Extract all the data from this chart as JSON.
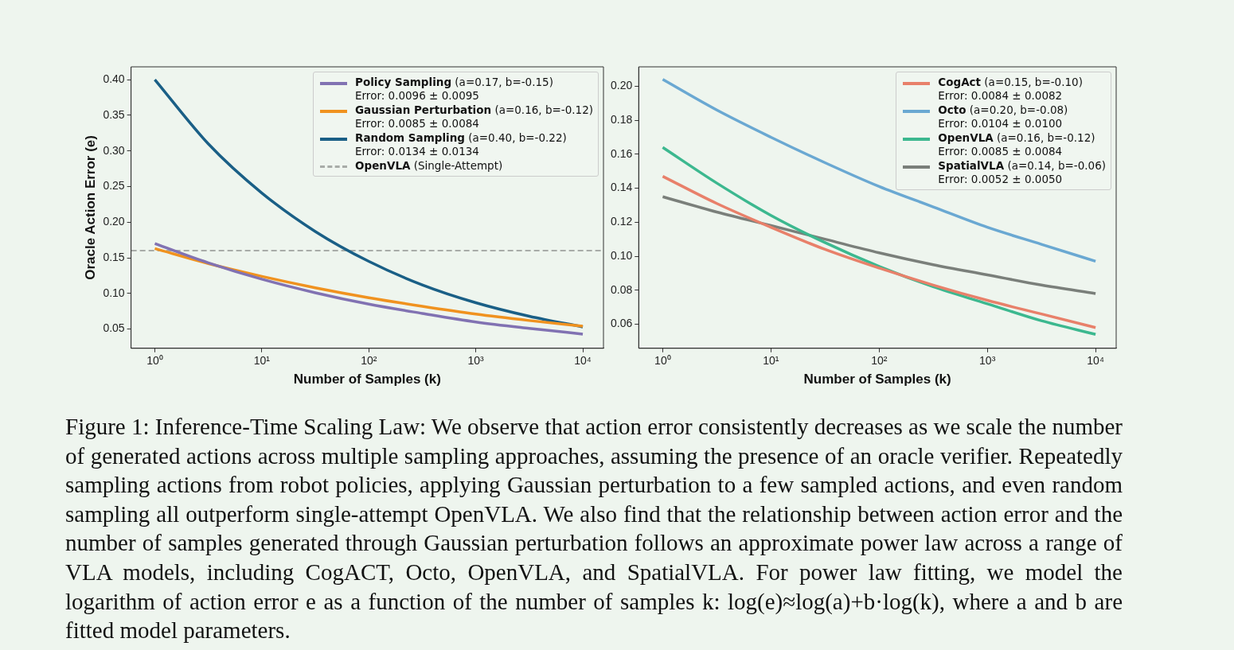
{
  "chart_data": [
    {
      "type": "line",
      "xlabel": "Number of Samples (k)",
      "ylabel": "Oracle Action Error (e)",
      "log": "x",
      "legend": "top right",
      "x": [
        1,
        3.16,
        10,
        31.6,
        100,
        316,
        1000,
        3160,
        10000
      ],
      "xlim": [
        0.62,
        15600
      ],
      "xticks": [
        {
          "value": 1,
          "label": "10⁰"
        },
        {
          "value": 10,
          "label": "10¹"
        },
        {
          "value": 100,
          "label": "10²"
        },
        {
          "value": 1000,
          "label": "10³"
        },
        {
          "value": 10000,
          "label": "10⁴"
        }
      ],
      "ylim": [
        0.023,
        0.418
      ],
      "yticks": [
        {
          "value": 0.05,
          "label": "0.05"
        },
        {
          "value": 0.1,
          "label": "0.10"
        },
        {
          "value": 0.15,
          "label": "0.15"
        },
        {
          "value": 0.2,
          "label": "0.20"
        },
        {
          "value": 0.25,
          "label": "0.25"
        },
        {
          "value": 0.3,
          "label": "0.30"
        },
        {
          "value": 0.35,
          "label": "0.35"
        },
        {
          "value": 0.4,
          "label": "0.40"
        }
      ],
      "series": [
        {
          "name": "Policy Sampling (a=0.17, b=-0.15)\nError: 0.0096 ± 0.0095",
          "color": "#8172b2",
          "values": [
            0.17,
            0.143,
            0.12,
            0.101,
            0.085,
            0.072,
            0.06,
            0.051,
            0.043
          ]
        },
        {
          "name": "Gaussian Perturbation (a=0.16, b=-0.12)\nError: 0.0085 ± 0.0084",
          "color": "#f0921f",
          "values": [
            0.163,
            0.142,
            0.124,
            0.108,
            0.094,
            0.082,
            0.071,
            0.062,
            0.054
          ]
        },
        {
          "name": "Random Sampling (a=0.40, b=-0.22)\nError: 0.0134 ± 0.0134",
          "color": "#1a5f86",
          "values": [
            0.4,
            0.31,
            0.241,
            0.187,
            0.145,
            0.112,
            0.087,
            0.068,
            0.053
          ]
        }
      ],
      "ref_lines": [
        {
          "axis": "y",
          "value": 0.16,
          "label": "OpenVLA (Single-Attempt)",
          "color": "#a8aca8",
          "line_style": "dashed"
        }
      ],
      "annotations": [
        "Figure 1: Inference-Time Scaling Law: We observe that action error consistently decreases as we scale the number of generated actions across multiple sampling approaches, assuming the presence of an oracle verifier. Repeatedly sampling actions from robot policies, applying Gaussian perturbation to a few sampled actions, and even random sampling all outperform single-attempt OpenVLA. We also find that the relationship between action error and the number of samples generated through Gaussian perturbation follows an approximate power law across a range of VLA models, including CogACT, Octo, OpenVLA, and SpatialVLA. For power law fitting, we model the logarithm of action error e as a function of the number of samples k: log(e)≈log(a)+b·log(k), where a and b are fitted model parameters."
      ]
    },
    {
      "type": "line",
      "xlabel": "Number of Samples (k)",
      "log": "x",
      "legend": "top right",
      "x": [
        1,
        3.16,
        10,
        31.6,
        100,
        316,
        1000,
        3160,
        10000
      ],
      "xlim": [
        0.63,
        15500
      ],
      "xticks": [
        {
          "value": 1,
          "label": "10⁰"
        },
        {
          "value": 10,
          "label": "10¹"
        },
        {
          "value": 100,
          "label": "10²"
        },
        {
          "value": 1000,
          "label": "10³"
        },
        {
          "value": 10000,
          "label": "10⁴"
        }
      ],
      "ylim": [
        0.0458,
        0.2114
      ],
      "yticks": [
        {
          "value": 0.06,
          "label": "0.06"
        },
        {
          "value": 0.08,
          "label": "0.08"
        },
        {
          "value": 0.1,
          "label": "0.10"
        },
        {
          "value": 0.12,
          "label": "0.12"
        },
        {
          "value": 0.14,
          "label": "0.14"
        },
        {
          "value": 0.16,
          "label": "0.16"
        },
        {
          "value": 0.18,
          "label": "0.18"
        },
        {
          "value": 0.2,
          "label": "0.20"
        }
      ],
      "series": [
        {
          "name": "CogAct (a=0.15, b=-0.10)\nError: 0.0084 ± 0.0082",
          "color": "#e8806a",
          "values": [
            0.147,
            0.131,
            0.117,
            0.104,
            0.093,
            0.083,
            0.074,
            0.066,
            0.058
          ]
        },
        {
          "name": "Octo (a=0.20, b=-0.08)\nError: 0.0104 ± 0.0100",
          "color": "#6aa8d2",
          "values": [
            0.204,
            0.186,
            0.17,
            0.155,
            0.141,
            0.129,
            0.117,
            0.107,
            0.097
          ]
        },
        {
          "name": "OpenVLA (a=0.16, b=-0.12)\nError: 0.0085 ± 0.0084",
          "color": "#3cb88f",
          "values": [
            0.164,
            0.143,
            0.124,
            0.108,
            0.094,
            0.082,
            0.072,
            0.062,
            0.054
          ]
        },
        {
          "name": "SpatialVLA (a=0.14, b=-0.06)\nError: 0.0052 ± 0.0050",
          "color": "#7a7f7a",
          "values": [
            0.135,
            0.126,
            0.118,
            0.11,
            0.102,
            0.095,
            0.089,
            0.083,
            0.078
          ]
        }
      ]
    }
  ]
}
